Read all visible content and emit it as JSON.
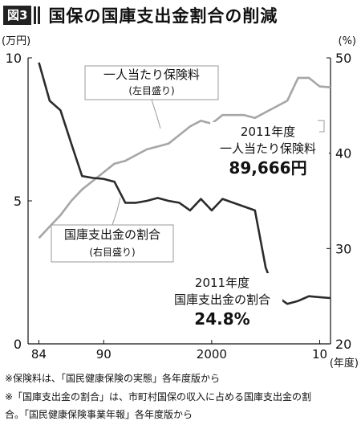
{
  "header": {
    "badge": "図3",
    "title": "国保の国庫支出金割合の削減"
  },
  "chart_data": {
    "type": "line",
    "left_axis": {
      "unit": "(万円)",
      "ticks": [
        0,
        5,
        10
      ],
      "range": [
        0,
        10
      ]
    },
    "right_axis": {
      "unit": "(%)",
      "ticks": [
        20,
        30,
        40,
        50
      ],
      "range": [
        20,
        50
      ]
    },
    "x_axis": {
      "unit": "(年度)",
      "range": [
        1983,
        2011
      ],
      "ticks": [
        {
          "value": 1984,
          "label": "84"
        },
        {
          "value": 1990,
          "label": "90"
        },
        {
          "value": 2000,
          "label": "2000"
        },
        {
          "value": 2010,
          "label": "10"
        }
      ]
    },
    "series": [
      {
        "name": "一人当たり保険料",
        "axis": "left",
        "color": "#a6a6a6",
        "x": [
          1984,
          1985,
          1986,
          1987,
          1988,
          1989,
          1990,
          1991,
          1992,
          1993,
          1994,
          1995,
          1996,
          1997,
          1998,
          1999,
          2000,
          2001,
          2002,
          2003,
          2004,
          2005,
          2006,
          2007,
          2008,
          2009,
          2010,
          2011
        ],
        "values": [
          3.7,
          4.1,
          4.5,
          5.0,
          5.4,
          5.7,
          6.0,
          6.3,
          6.4,
          6.6,
          6.8,
          6.9,
          7.0,
          7.3,
          7.6,
          7.8,
          7.7,
          8.0,
          8.0,
          8.0,
          7.9,
          8.1,
          8.3,
          8.5,
          9.3,
          9.3,
          9.0,
          8.97
        ]
      },
      {
        "name": "国庫支出金の割合",
        "axis": "right",
        "color": "#2b2b2b",
        "x": [
          1984,
          1985,
          1986,
          1987,
          1988,
          1989,
          1990,
          1991,
          1992,
          1993,
          1994,
          1995,
          1996,
          1997,
          1998,
          1999,
          2000,
          2001,
          2002,
          2003,
          2004,
          2005,
          2006,
          2007,
          2008,
          2009,
          2010,
          2011
        ],
        "values": [
          49.5,
          45.5,
          44.5,
          41.0,
          37.6,
          37.4,
          37.3,
          37.0,
          34.8,
          34.8,
          35.0,
          35.3,
          35.0,
          34.8,
          34.0,
          35.2,
          34.0,
          35.2,
          34.8,
          34.4,
          34.0,
          28.0,
          25.0,
          24.2,
          24.5,
          25.0,
          24.9,
          24.8
        ]
      }
    ],
    "annotations": [
      {
        "lines": [
          "一人当たり保険料",
          "(左目盛り)"
        ]
      },
      {
        "lines": [
          "国庫支出金の割合",
          "(右目盛り)"
        ]
      },
      {
        "lines": [
          "2011年度",
          "一人当たり保険料"
        ],
        "value": "89,666円"
      },
      {
        "lines": [
          "2011年度",
          "国庫支出金の割合"
        ],
        "value": "24.8%"
      }
    ]
  },
  "notes": [
    "※保険料は、「国民健康保険の実態」各年度版から",
    "※「国庫支出金の割合」は、市町村国保の収入に占める国庫支出金の割",
    "合。「国民健康保険事業年報」各年度版から"
  ]
}
